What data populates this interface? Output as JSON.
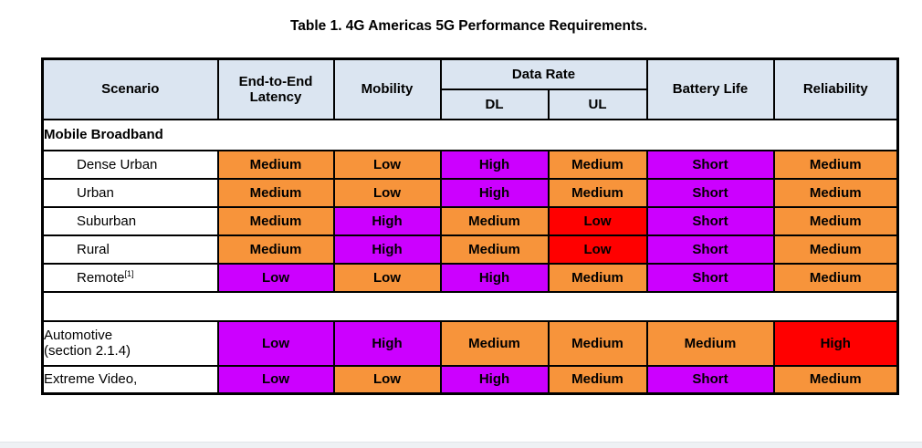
{
  "title": "Table 1. 4G Americas 5G Performance Requirements.",
  "colors": {
    "orange": "#F7943B",
    "magenta": "#CC00FF",
    "red": "#FF0000",
    "header_bg": "#DBE5F1",
    "border": "#000000"
  },
  "table": {
    "headers": {
      "scenario": "Scenario",
      "latency": "End-to-End Latency",
      "mobility": "Mobility",
      "data_rate": "Data Rate",
      "dl": "DL",
      "ul": "UL",
      "battery": "Battery Life",
      "reliability": "Reliability"
    },
    "rows": [
      {
        "type": "section",
        "label": "Mobile Broadband"
      },
      {
        "type": "data",
        "label": "Dense Urban",
        "indent": true,
        "cells": [
          {
            "text": "Medium",
            "color": "orange"
          },
          {
            "text": "Low",
            "color": "orange"
          },
          {
            "text": "High",
            "color": "magenta"
          },
          {
            "text": "Medium",
            "color": "orange"
          },
          {
            "text": "Short",
            "color": "magenta"
          },
          {
            "text": "Medium",
            "color": "orange"
          }
        ]
      },
      {
        "type": "data",
        "label": "Urban",
        "indent": true,
        "cells": [
          {
            "text": "Medium",
            "color": "orange"
          },
          {
            "text": "Low",
            "color": "orange"
          },
          {
            "text": "High",
            "color": "magenta"
          },
          {
            "text": "Medium",
            "color": "orange"
          },
          {
            "text": "Short",
            "color": "magenta"
          },
          {
            "text": "Medium",
            "color": "orange"
          }
        ]
      },
      {
        "type": "data",
        "label": "Suburban",
        "indent": true,
        "cells": [
          {
            "text": "Medium",
            "color": "orange"
          },
          {
            "text": "High",
            "color": "magenta"
          },
          {
            "text": "Medium",
            "color": "orange"
          },
          {
            "text": "Low",
            "color": "red"
          },
          {
            "text": "Short",
            "color": "magenta"
          },
          {
            "text": "Medium",
            "color": "orange"
          }
        ]
      },
      {
        "type": "data",
        "label": "Rural",
        "indent": true,
        "cells": [
          {
            "text": "Medium",
            "color": "orange"
          },
          {
            "text": "High",
            "color": "magenta"
          },
          {
            "text": "Medium",
            "color": "orange"
          },
          {
            "text": "Low",
            "color": "red"
          },
          {
            "text": "Short",
            "color": "magenta"
          },
          {
            "text": "Medium",
            "color": "orange"
          }
        ]
      },
      {
        "type": "data",
        "label": "Remote",
        "sup": "[1]",
        "indent": true,
        "cells": [
          {
            "text": "Low",
            "color": "magenta"
          },
          {
            "text": "Low",
            "color": "orange"
          },
          {
            "text": "High",
            "color": "magenta"
          },
          {
            "text": "Medium",
            "color": "orange"
          },
          {
            "text": "Short",
            "color": "magenta"
          },
          {
            "text": "Medium",
            "color": "orange"
          }
        ]
      },
      {
        "type": "spacer"
      },
      {
        "type": "data",
        "label": "Automotive\n(section 2.1.4)",
        "tall": true,
        "cells": [
          {
            "text": "Low",
            "color": "magenta"
          },
          {
            "text": "High",
            "color": "magenta"
          },
          {
            "text": "Medium",
            "color": "orange"
          },
          {
            "text": "Medium",
            "color": "orange"
          },
          {
            "text": "Medium",
            "color": "orange"
          },
          {
            "text": "High",
            "color": "red"
          }
        ]
      },
      {
        "type": "data",
        "label": "Extreme Video,",
        "cells": [
          {
            "text": "Low",
            "color": "magenta"
          },
          {
            "text": "Low",
            "color": "orange"
          },
          {
            "text": "High",
            "color": "magenta"
          },
          {
            "text": "Medium",
            "color": "orange"
          },
          {
            "text": "Short",
            "color": "magenta"
          },
          {
            "text": "Medium",
            "color": "orange"
          }
        ]
      }
    ]
  }
}
